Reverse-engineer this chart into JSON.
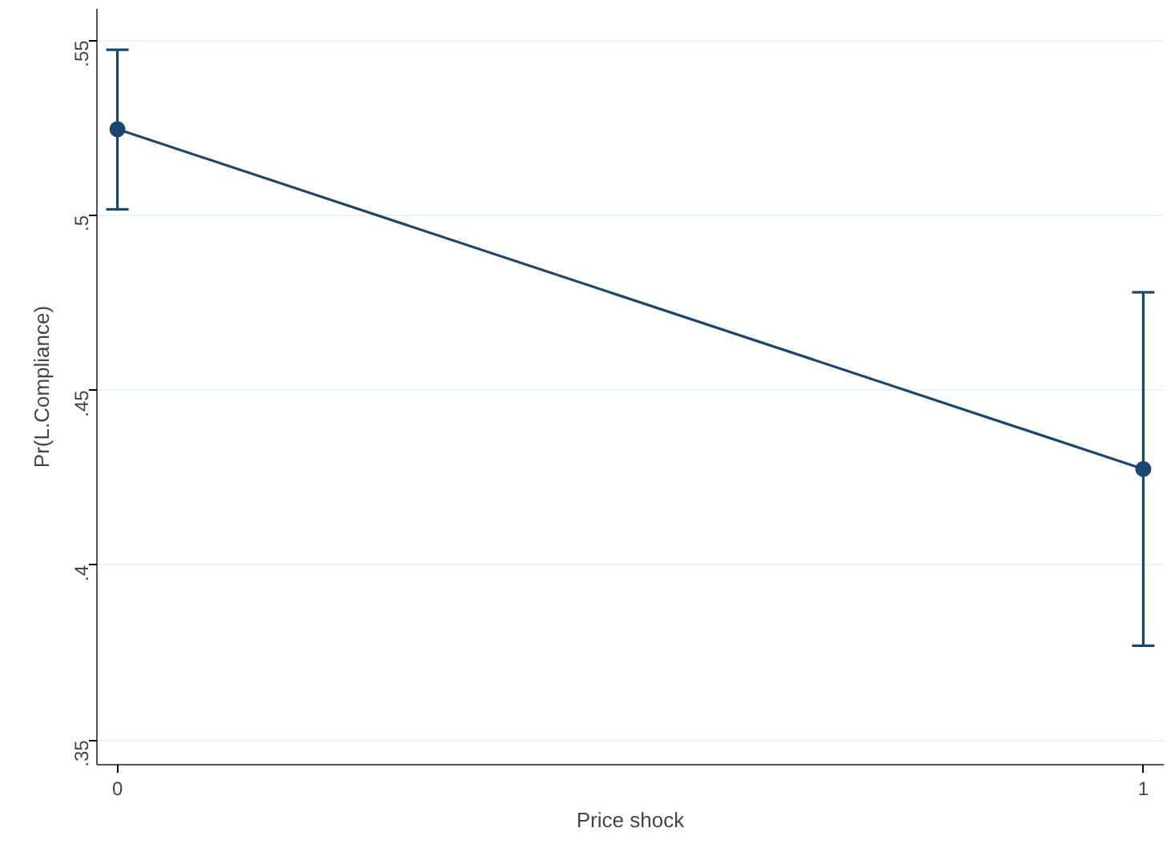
{
  "chart_data": {
    "type": "line",
    "xlabel": "Price shock",
    "ylabel": "Pr(L.Compliance)",
    "x": [
      0,
      1
    ],
    "series": [
      {
        "color": "#1a476f",
        "values": [
          0.5246,
          0.4275
        ],
        "errors": [
          [
            0.5017,
            0.5473
          ],
          [
            0.377,
            0.478
          ]
        ]
      }
    ],
    "xlim": [
      -0.02,
      1.02
    ],
    "xticks": [
      0,
      1
    ],
    "ylim": [
      0.343,
      0.559
    ],
    "yticks": [
      {
        "value": 0.35,
        "label": ".35"
      },
      {
        "value": 0.4,
        "label": ".4"
      },
      {
        "value": 0.45,
        "label": ".45"
      },
      {
        "value": 0.5,
        "label": ".5"
      },
      {
        "value": 0.55,
        "label": ".55"
      }
    ],
    "grid": "y",
    "marker": "circle",
    "line_style": "solid"
  }
}
